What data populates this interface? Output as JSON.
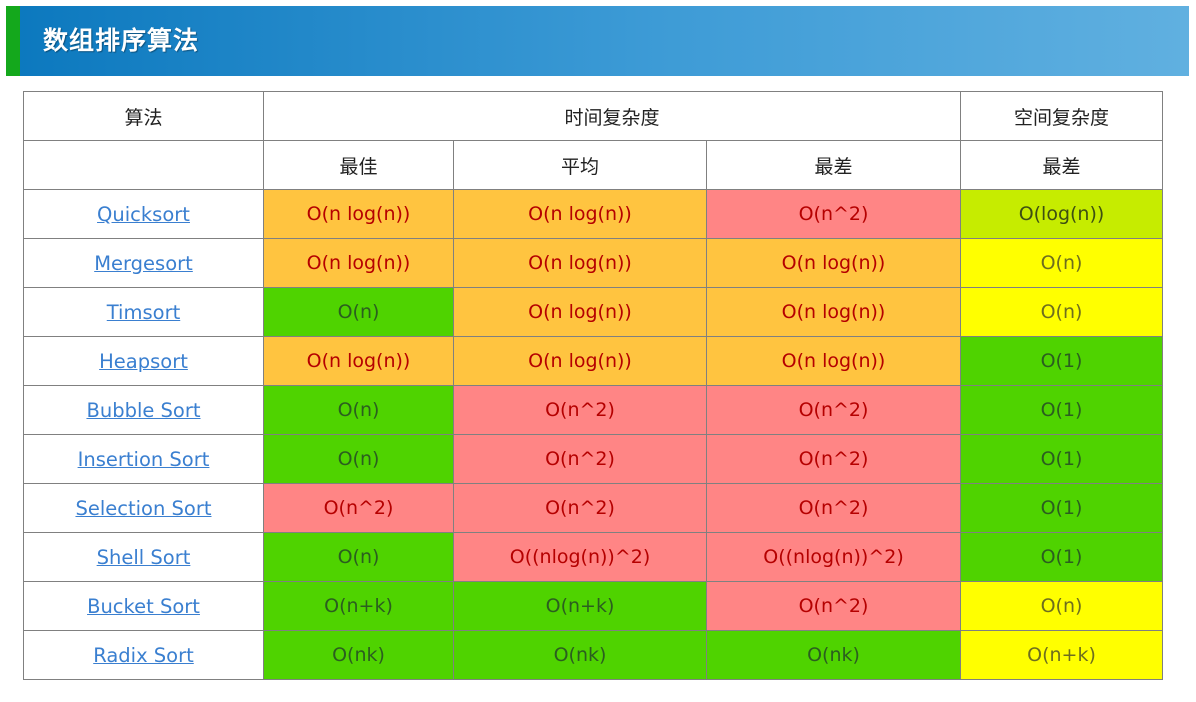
{
  "banner": {
    "title": "数组排序算法"
  },
  "table": {
    "header": {
      "algorithm": "算法",
      "time_complexity": "时间复杂度",
      "space_complexity": "空间复杂度",
      "best": "最佳",
      "average": "平均",
      "worst": "最差",
      "space_worst": "最差"
    },
    "colors": {
      "orange": "#ffc440",
      "red": "#ff8585",
      "green": "#4fd300",
      "lime": "#c6ec00",
      "yellow": "#ffff00",
      "link": "#3a7fd0"
    },
    "rows": [
      {
        "name": "Quicksort",
        "best": "O(n log(n))",
        "average": "O(n log(n))",
        "worst": "O(n^2)",
        "space": "O(log(n))"
      },
      {
        "name": "Mergesort",
        "best": "O(n log(n))",
        "average": "O(n log(n))",
        "worst": "O(n log(n))",
        "space": "O(n)"
      },
      {
        "name": "Timsort",
        "best": "O(n)",
        "average": "O(n log(n))",
        "worst": "O(n log(n))",
        "space": "O(n)"
      },
      {
        "name": "Heapsort",
        "best": "O(n log(n))",
        "average": "O(n log(n))",
        "worst": "O(n log(n))",
        "space": "O(1)"
      },
      {
        "name": "Bubble Sort",
        "best": "O(n)",
        "average": "O(n^2)",
        "worst": "O(n^2)",
        "space": "O(1)"
      },
      {
        "name": "Insertion Sort",
        "best": "O(n)",
        "average": "O(n^2)",
        "worst": "O(n^2)",
        "space": "O(1)"
      },
      {
        "name": "Selection Sort",
        "best": "O(n^2)",
        "average": "O(n^2)",
        "worst": "O(n^2)",
        "space": "O(1)"
      },
      {
        "name": "Shell Sort",
        "best": "O(n)",
        "average": "O((nlog(n))^2)",
        "worst": "O((nlog(n))^2)",
        "space": "O(1)"
      },
      {
        "name": "Bucket Sort",
        "best": "O(n+k)",
        "average": "O(n+k)",
        "worst": "O(n^2)",
        "space": "O(n)"
      },
      {
        "name": "Radix Sort",
        "best": "O(nk)",
        "average": "O(nk)",
        "worst": "O(nk)",
        "space": "O(n+k)"
      }
    ]
  }
}
